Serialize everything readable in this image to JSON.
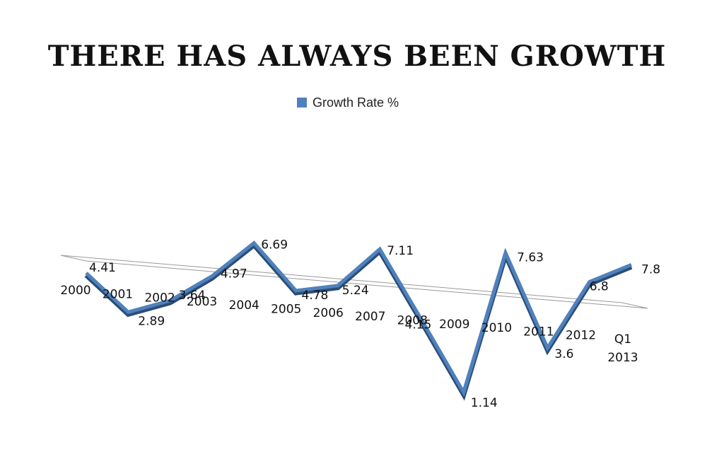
{
  "title": "THERE HAS ALWAYS BEEN GROWTH",
  "chart_data": {
    "type": "line",
    "title": "THERE HAS ALWAYS BEEN GROWTH",
    "categories": [
      "2000",
      "2001",
      "2002",
      "2003",
      "2004",
      "2005",
      "2006",
      "2007",
      "2008",
      "2009",
      "2010",
      "2011",
      "2012",
      "Q1 2013"
    ],
    "series": [
      {
        "name": "Growth Rate %",
        "values": [
          4.41,
          2.89,
          3.64,
          4.97,
          6.69,
          4.78,
          5.24,
          7.11,
          4.15,
          1.14,
          7.63,
          3.6,
          6.8,
          7.8
        ],
        "data_labels": [
          "4.41",
          "2.89",
          "3.64",
          "4.97",
          "6.69",
          "4.78",
          "5.24",
          "7.11",
          "4.15",
          "1.14",
          "7.63",
          "3.6",
          "6.8",
          "7.8"
        ]
      }
    ],
    "legend": "top",
    "grid": false,
    "style": "3d-perspective"
  },
  "colors": {
    "line": "#4f81bd",
    "line_dark": "#2c4d75",
    "floor_stroke": "#999999",
    "title": "#111111"
  }
}
